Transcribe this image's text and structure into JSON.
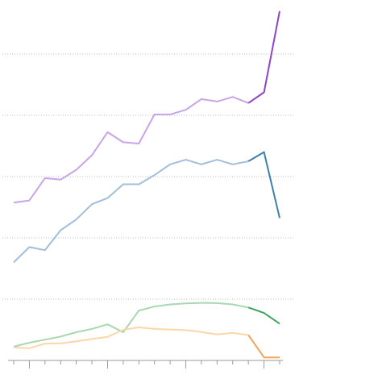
{
  "chart_data": {
    "type": "line",
    "title": "",
    "xlabel": "",
    "ylabel": "",
    "grid": "horizontal-dotted",
    "legend": "none",
    "x": [
      1,
      2,
      3,
      4,
      5,
      6,
      7,
      8,
      9,
      10,
      11,
      12,
      13,
      14,
      15,
      16,
      17,
      18
    ],
    "ylim": [
      0,
      115
    ],
    "y_gridlines": [
      20,
      40,
      60,
      80,
      100
    ],
    "highlight_from_index": 15,
    "series": [
      {
        "color_light": "#c9a4e6",
        "color_dark": "#8e44c8",
        "values": [
          51.5,
          52.2,
          59.5,
          59.0,
          62.2,
          67.0,
          74.5,
          71.2,
          70.8,
          80.3,
          80.3,
          81.8,
          85.3,
          84.5,
          86.0,
          84.0,
          87.5,
          114.0
        ]
      },
      {
        "color_light": "#9fbfdb",
        "color_dark": "#3f7fad",
        "values": [
          32.0,
          37.0,
          36.0,
          42.5,
          46.0,
          51.0,
          53.0,
          57.5,
          57.5,
          60.5,
          64.0,
          65.5,
          64.0,
          65.5,
          64.0,
          65.0,
          68.0,
          46.5
        ]
      },
      {
        "color_light": "#a8d8b0",
        "color_dark": "#3fa45b",
        "values": [
          4.5,
          5.8,
          6.8,
          7.8,
          9.2,
          10.3,
          11.8,
          9.2,
          16.3,
          17.6,
          18.3,
          18.6,
          18.8,
          18.7,
          18.3,
          17.3,
          15.5,
          12.0
        ]
      },
      {
        "color_light": "#fbd7a8",
        "color_dark": "#f5a35a",
        "values": [
          4.2,
          4.0,
          5.5,
          5.6,
          6.2,
          7.0,
          7.7,
          10.0,
          10.8,
          10.3,
          10.1,
          9.9,
          9.3,
          8.5,
          9.0,
          8.3,
          1.0,
          1.0
        ]
      }
    ]
  }
}
